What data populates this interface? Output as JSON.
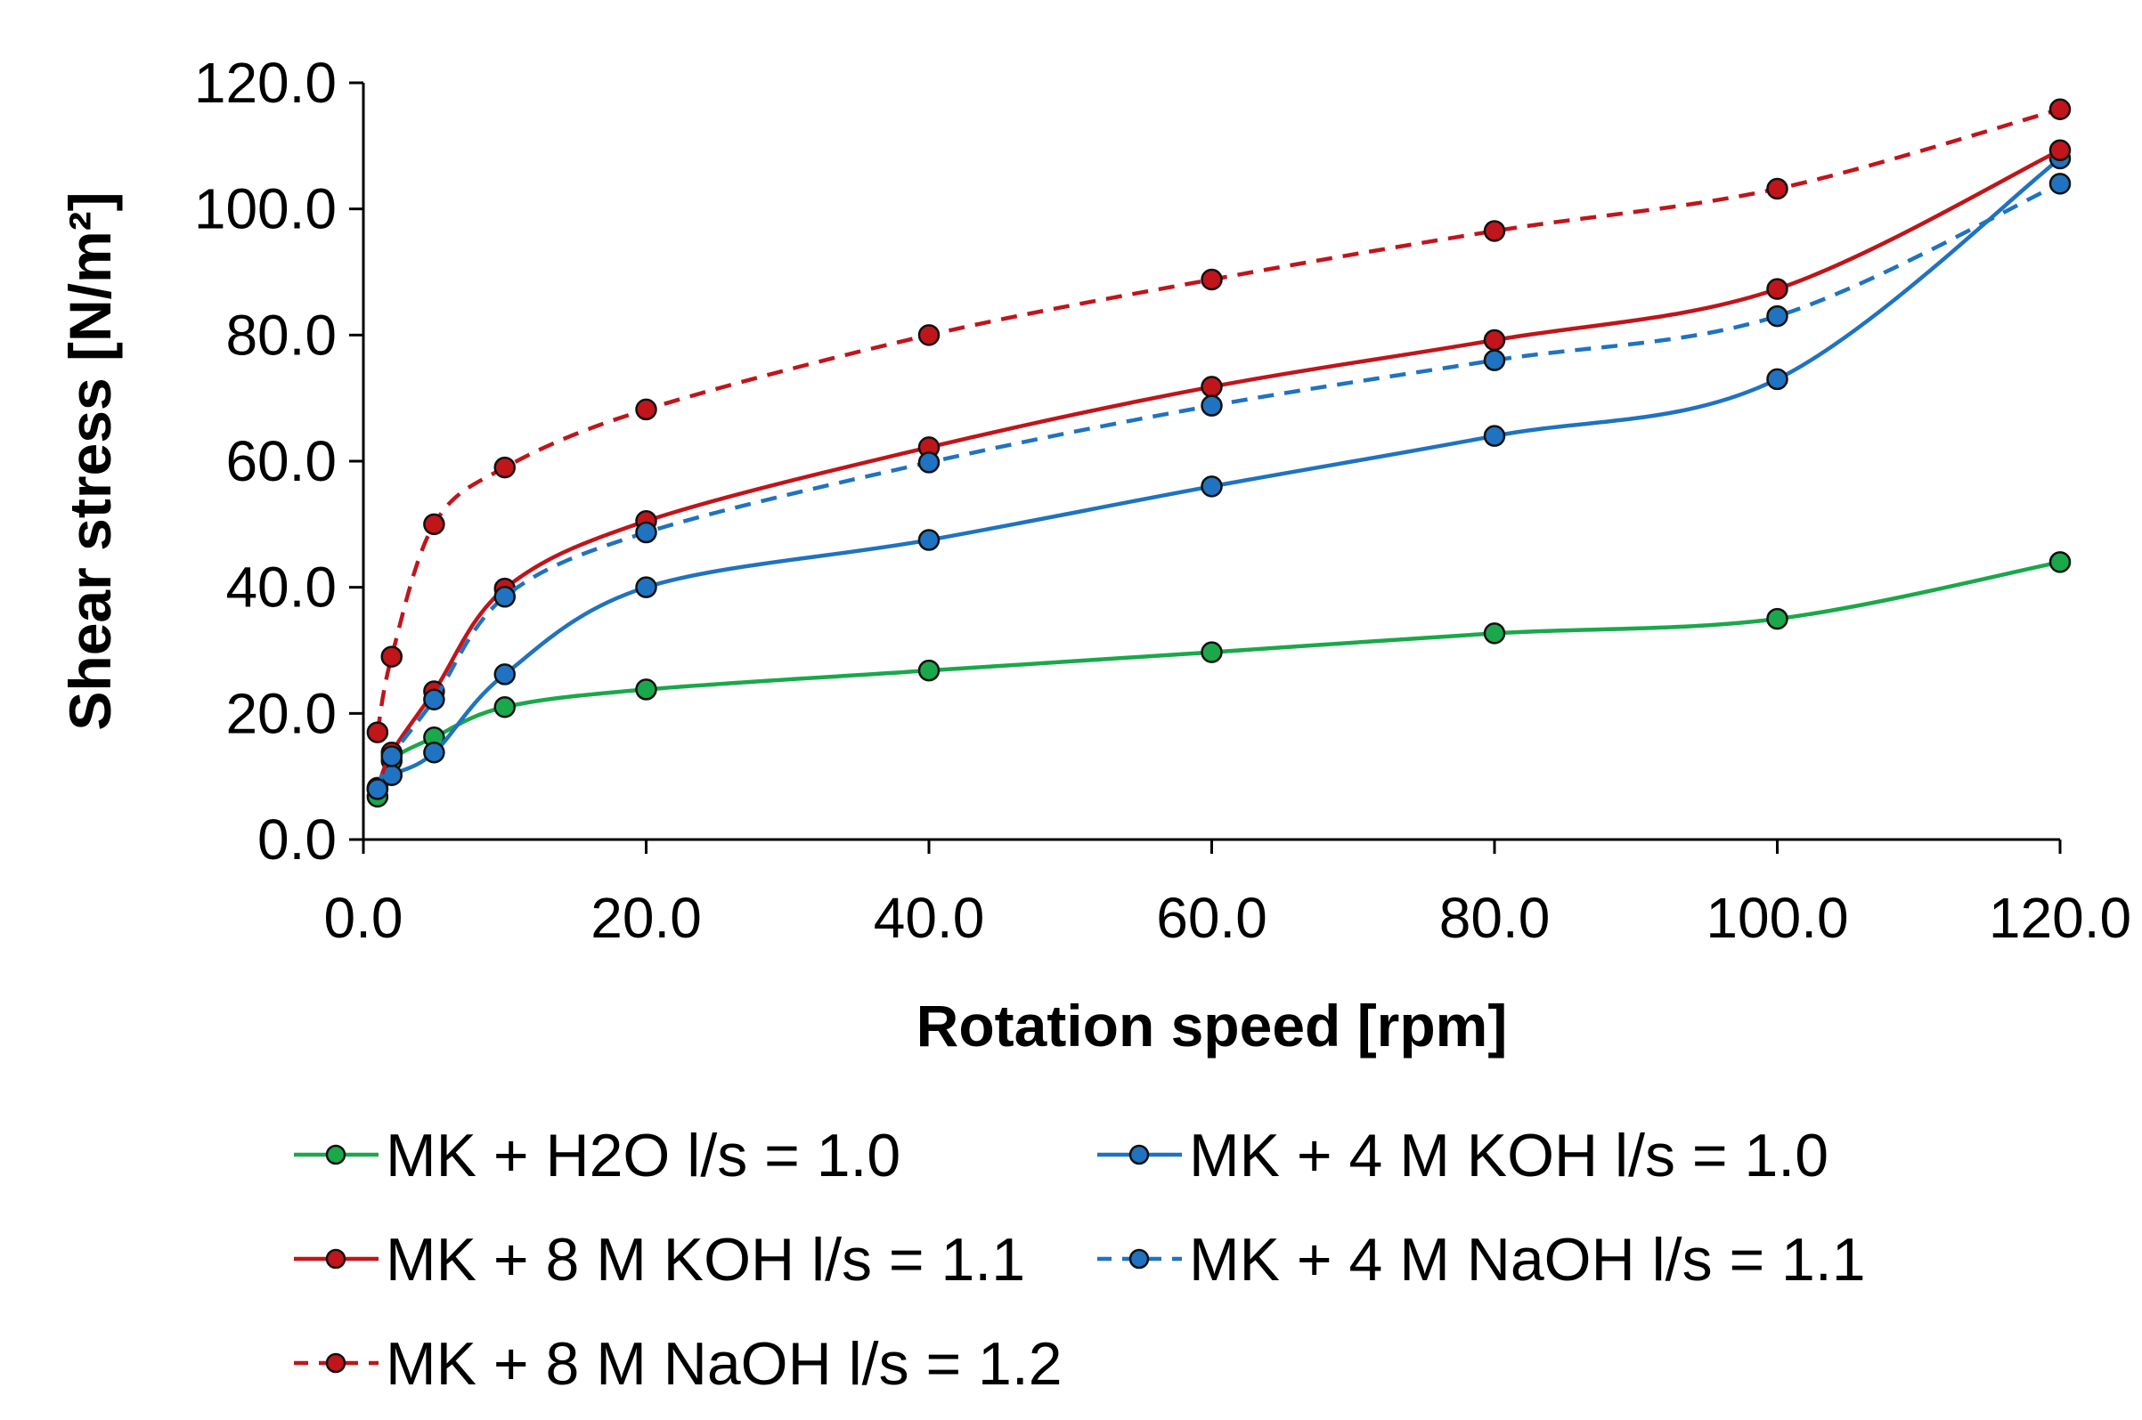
{
  "chart_data": {
    "type": "line",
    "title": "",
    "xlabel": "Rotation speed [rpm]",
    "ylabel": "Shear stress [N/m²]",
    "xlim": [
      0,
      120
    ],
    "ylim": [
      0,
      120
    ],
    "x_ticks": [
      "0.0",
      "20.0",
      "40.0",
      "60.0",
      "80.0",
      "100.0",
      "120.0"
    ],
    "y_ticks": [
      "0.0",
      "20.0",
      "40.0",
      "60.0",
      "80.0",
      "100.0",
      "120.0"
    ],
    "grid": false,
    "legend_position": "bottom",
    "x": [
      1,
      2,
      5,
      10,
      20,
      40,
      60,
      80,
      100,
      120
    ],
    "series": [
      {
        "name": "MK + H2O l/s = 1.0",
        "color": "#1aa84a",
        "dashed": false,
        "values": [
          6.8,
          12.5,
          16.2,
          21.0,
          23.8,
          26.8,
          29.7,
          32.7,
          35.0,
          44.0
        ]
      },
      {
        "name": "MK + 4 M KOH l/s = 1.0",
        "color": "#1f73c0",
        "dashed": false,
        "values": [
          8.2,
          10.2,
          13.8,
          26.2,
          40.0,
          47.5,
          56.0,
          64.0,
          73.0,
          108.0
        ]
      },
      {
        "name": "MK + 8 M KOH l/s = 1.1",
        "color": "#c0151b",
        "dashed": false,
        "values": [
          8.0,
          13.8,
          23.5,
          39.8,
          50.5,
          62.2,
          71.8,
          79.2,
          87.3,
          109.3
        ]
      },
      {
        "name": "MK + 4 M NaOH l/s = 1.1",
        "color": "#1f73c0",
        "dashed": true,
        "values": [
          8.0,
          13.2,
          22.2,
          38.5,
          48.7,
          59.8,
          68.8,
          76.0,
          83.0,
          104.0
        ]
      },
      {
        "name": "MK + 8 M NaOH l/s = 1.2",
        "color": "#c0151b",
        "dashed": true,
        "values": [
          17.0,
          29.0,
          50.0,
          59.0,
          68.2,
          80.0,
          88.8,
          96.5,
          103.2,
          115.8
        ]
      }
    ]
  }
}
